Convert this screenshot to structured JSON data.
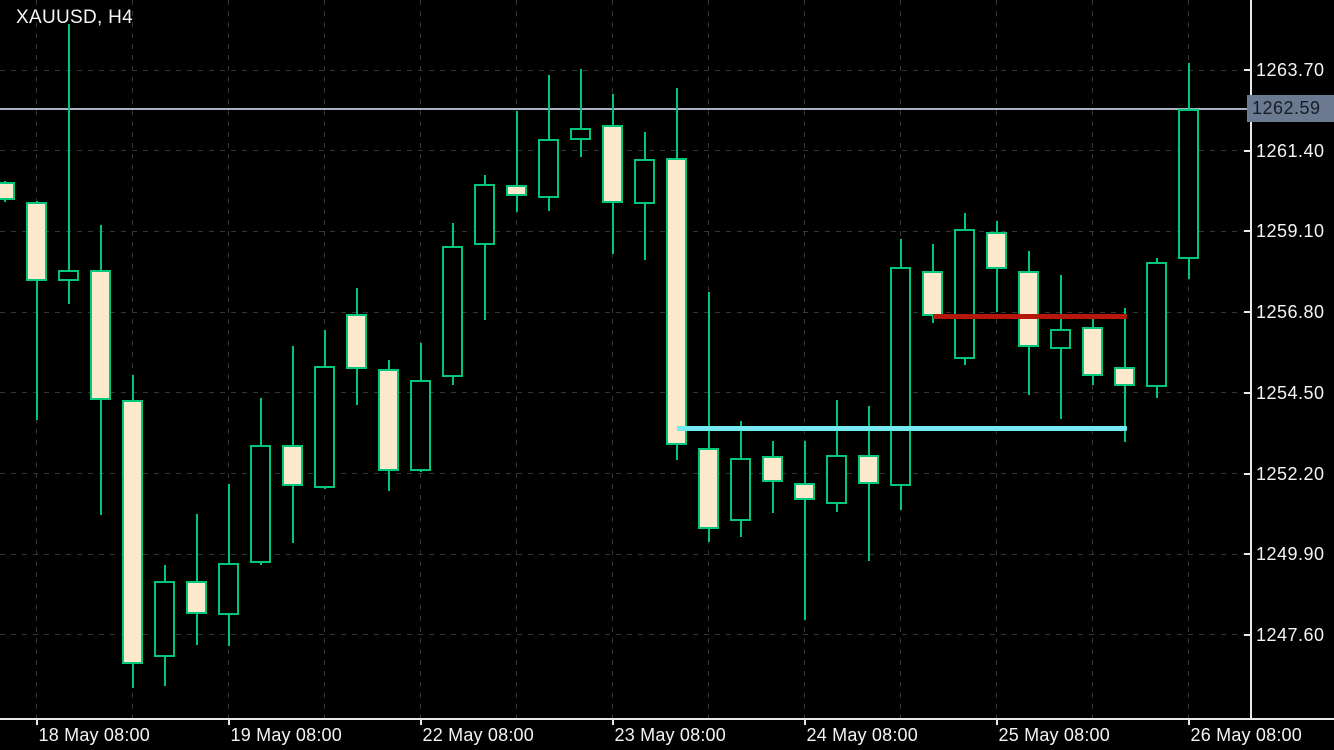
{
  "header": {
    "title": "XAUUSD, H4"
  },
  "colors": {
    "background": "#000000",
    "candle_outline": "#00c77b",
    "bear_fill": "#fce9cb",
    "bull_fill": "#000000",
    "grid": "#343434",
    "axis_line": "#e8e8e8",
    "axis_text": "#f4f4f4",
    "current_price_line": "#a9b2c0",
    "badge_bg": "#6b7a90",
    "badge_text": "#171c24",
    "cyan_ray": "#74e9f2",
    "red_ray": "#b5170b"
  },
  "price_axis": {
    "ticks": [
      "1263.70",
      "1261.40",
      "1259.10",
      "1256.80",
      "1254.50",
      "1252.20",
      "1249.90",
      "1247.60"
    ],
    "current_price_label": "1262.59"
  },
  "time_axis": {
    "labels": [
      {
        "text": "18 May 08:00",
        "candle_index": 1
      },
      {
        "text": "19 May 08:00",
        "candle_index": 7
      },
      {
        "text": "22 May 08:00",
        "candle_index": 13
      },
      {
        "text": "23 May 08:00",
        "candle_index": 19
      },
      {
        "text": "24 May 08:00",
        "candle_index": 25
      },
      {
        "text": "25 May 08:00",
        "candle_index": 31
      },
      {
        "text": "26 May 08:00",
        "candle_index": 37
      }
    ]
  },
  "chart_data": {
    "type": "candlestick",
    "symbol": "XAUUSD",
    "timeframe": "H4",
    "title": "XAUUSD, H4",
    "grid": true,
    "ylim": [
      1245.5,
      1265.8
    ],
    "price_ticks": [
      1263.7,
      1261.4,
      1259.1,
      1256.8,
      1254.5,
      1252.2,
      1249.9,
      1247.6
    ],
    "current_price": 1262.59,
    "minor_grid_candle_indices": [
      4,
      10,
      16,
      22,
      28,
      34
    ],
    "candles": [
      {
        "t": "18 May 04:00",
        "o": 1260.5,
        "h": 1260.55,
        "l": 1259.95,
        "c": 1260.0
      },
      {
        "t": "18 May 08:00",
        "o": 1259.94,
        "h": 1259.98,
        "l": 1253.73,
        "c": 1257.68
      },
      {
        "t": "18 May 12:00",
        "o": 1257.68,
        "h": 1265.0,
        "l": 1257.02,
        "c": 1258.01
      },
      {
        "t": "18 May 16:00",
        "o": 1258.01,
        "h": 1259.28,
        "l": 1251.03,
        "c": 1254.29
      },
      {
        "t": "18 May 20:00",
        "o": 1254.29,
        "h": 1255.02,
        "l": 1246.1,
        "c": 1246.76
      },
      {
        "t": "19 May 00:00",
        "o": 1246.97,
        "h": 1249.58,
        "l": 1246.15,
        "c": 1249.15
      },
      {
        "t": "19 May 04:00",
        "o": 1249.15,
        "h": 1251.05,
        "l": 1247.32,
        "c": 1248.19
      },
      {
        "t": "19 May 08:00",
        "o": 1248.16,
        "h": 1251.9,
        "l": 1247.27,
        "c": 1249.66
      },
      {
        "t": "19 May 12:00",
        "o": 1249.66,
        "h": 1254.34,
        "l": 1249.58,
        "c": 1253.0
      },
      {
        "t": "19 May 16:00",
        "o": 1253.0,
        "h": 1255.82,
        "l": 1250.22,
        "c": 1251.85
      },
      {
        "t": "19 May 20:00",
        "o": 1251.8,
        "h": 1256.3,
        "l": 1251.75,
        "c": 1255.26
      },
      {
        "t": "22 May 00:00",
        "o": 1256.76,
        "h": 1257.5,
        "l": 1254.16,
        "c": 1255.18
      },
      {
        "t": "22 May 04:00",
        "o": 1255.19,
        "h": 1255.44,
        "l": 1251.7,
        "c": 1252.28
      },
      {
        "t": "22 May 08:00",
        "o": 1252.26,
        "h": 1255.92,
        "l": 1252.24,
        "c": 1254.87
      },
      {
        "t": "22 May 12:00",
        "o": 1254.95,
        "h": 1259.33,
        "l": 1254.72,
        "c": 1258.68
      },
      {
        "t": "22 May 16:00",
        "o": 1258.72,
        "h": 1260.7,
        "l": 1256.58,
        "c": 1260.45
      },
      {
        "t": "22 May 20:00",
        "o": 1260.42,
        "h": 1262.52,
        "l": 1259.65,
        "c": 1260.11
      },
      {
        "t": "23 May 00:00",
        "o": 1260.06,
        "h": 1263.57,
        "l": 1259.67,
        "c": 1261.74
      },
      {
        "t": "23 May 04:00",
        "o": 1261.71,
        "h": 1263.72,
        "l": 1261.23,
        "c": 1262.06
      },
      {
        "t": "23 May 08:00",
        "o": 1262.12,
        "h": 1263.03,
        "l": 1258.45,
        "c": 1259.91
      },
      {
        "t": "23 May 12:00",
        "o": 1259.88,
        "h": 1261.93,
        "l": 1258.28,
        "c": 1261.15
      },
      {
        "t": "23 May 16:00",
        "o": 1261.18,
        "h": 1263.18,
        "l": 1252.58,
        "c": 1253.02
      },
      {
        "t": "23 May 20:00",
        "o": 1252.93,
        "h": 1257.36,
        "l": 1250.24,
        "c": 1250.62
      },
      {
        "t": "24 May 00:00",
        "o": 1250.85,
        "h": 1253.7,
        "l": 1250.39,
        "c": 1252.65
      },
      {
        "t": "24 May 04:00",
        "o": 1252.69,
        "h": 1253.14,
        "l": 1251.08,
        "c": 1251.95
      },
      {
        "t": "24 May 08:00",
        "o": 1251.92,
        "h": 1253.12,
        "l": 1248.03,
        "c": 1251.44
      },
      {
        "t": "24 May 12:00",
        "o": 1251.34,
        "h": 1254.29,
        "l": 1251.1,
        "c": 1252.74
      },
      {
        "t": "24 May 16:00",
        "o": 1252.74,
        "h": 1254.12,
        "l": 1249.71,
        "c": 1251.9
      },
      {
        "t": "24 May 20:00",
        "o": 1251.85,
        "h": 1258.87,
        "l": 1251.16,
        "c": 1258.08
      },
      {
        "t": "25 May 00:00",
        "o": 1257.96,
        "h": 1258.74,
        "l": 1256.5,
        "c": 1256.68
      },
      {
        "t": "25 May 04:00",
        "o": 1255.46,
        "h": 1259.63,
        "l": 1255.28,
        "c": 1259.17
      },
      {
        "t": "25 May 08:00",
        "o": 1259.09,
        "h": 1259.39,
        "l": 1256.81,
        "c": 1258.04
      },
      {
        "t": "25 May 12:00",
        "o": 1257.96,
        "h": 1258.54,
        "l": 1254.43,
        "c": 1255.81
      },
      {
        "t": "25 May 16:00",
        "o": 1255.76,
        "h": 1257.85,
        "l": 1253.74,
        "c": 1256.33
      },
      {
        "t": "25 May 20:00",
        "o": 1256.38,
        "h": 1256.76,
        "l": 1254.72,
        "c": 1254.99
      },
      {
        "t": "26 May 00:00",
        "o": 1255.24,
        "h": 1256.91,
        "l": 1253.11,
        "c": 1254.7
      },
      {
        "t": "26 May 04:00",
        "o": 1254.67,
        "h": 1258.35,
        "l": 1254.36,
        "c": 1258.23
      },
      {
        "t": "26 May 08:00",
        "o": 1258.3,
        "h": 1263.91,
        "l": 1257.73,
        "c": 1262.59
      }
    ],
    "overlays": [
      {
        "type": "horizontal-ray",
        "name": "support-ray",
        "color_key": "cyan_ray",
        "price": 1253.47,
        "from_candle": 21,
        "to_candle": 35,
        "thickness": 5
      },
      {
        "type": "horizontal-ray",
        "name": "resistance-ray",
        "color_key": "red_ray",
        "price": 1256.67,
        "from_candle": 29,
        "to_candle": 35,
        "thickness": 5
      }
    ]
  }
}
